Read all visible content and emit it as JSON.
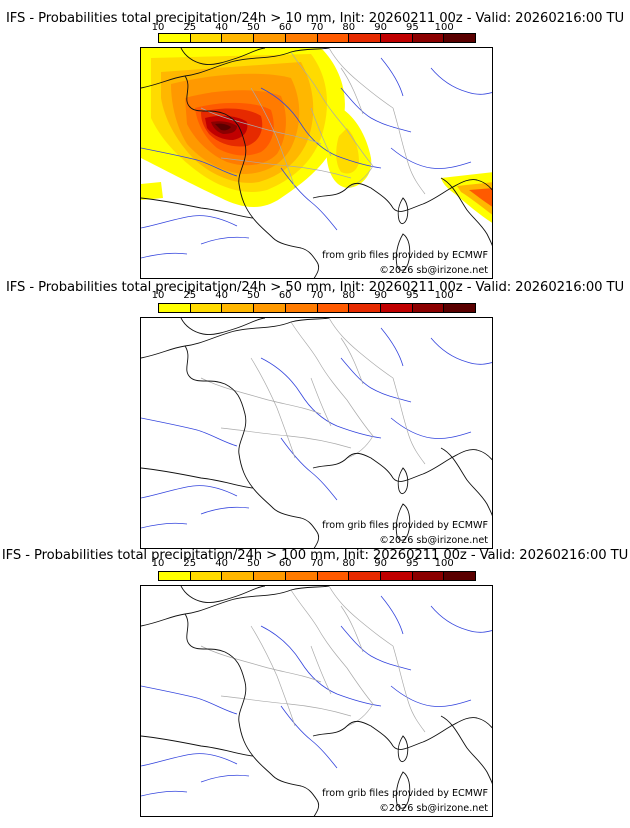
{
  "colorbar": {
    "ticks": [
      "10",
      "25",
      "40",
      "50",
      "60",
      "70",
      "80",
      "90",
      "95",
      "100"
    ],
    "colors": [
      "#ffff00",
      "#ffdb00",
      "#ffb700",
      "#ff9900",
      "#ff7b00",
      "#ff5a00",
      "#e62a00",
      "#c00000",
      "#8b0000",
      "#5a0000"
    ]
  },
  "panels": [
    {
      "title": "IFS - Probabilities total precipitation/24h > 10 mm, Init: 20260211 00z - Valid: 20260216:00 TU",
      "source_credit": "from grib files provided by ECMWF",
      "copyright": "©2026 sb@irizone.net",
      "threshold_mm": 10
    },
    {
      "title": "IFS - Probabilities total precipitation/24h > 50 mm, Init: 20260211 00z - Valid: 20260216:00 TU",
      "source_credit": "from grib files provided by ECMWF",
      "copyright": "©2026 sb@irizone.net",
      "threshold_mm": 50
    },
    {
      "title": "IFS - Probabilities total precipitation/24h > 100 mm, Init: 20260211 00z - Valid: 20260216:00 TU",
      "source_credit": "from grib files provided by ECMWF",
      "copyright": "©2026 sb@irizone.net",
      "threshold_mm": 100
    }
  ]
}
